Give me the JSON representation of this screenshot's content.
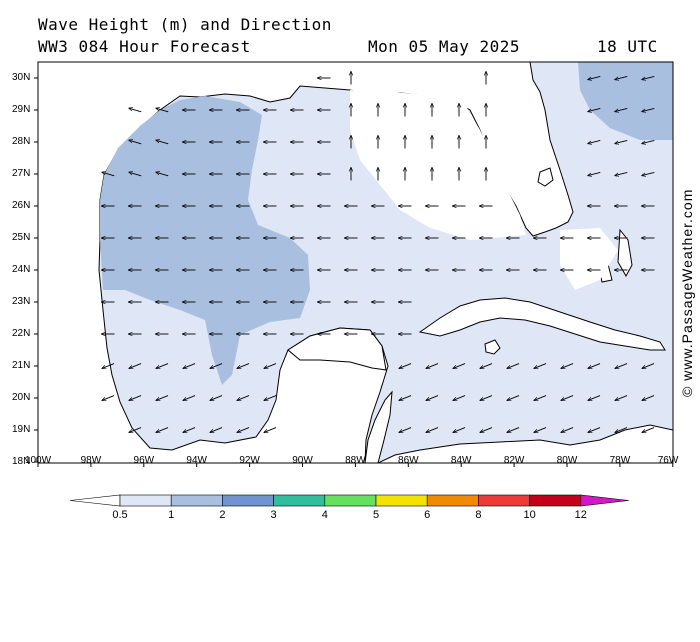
{
  "header": {
    "title_line1": "Wave Height (m) and Direction",
    "model_line": "WW3 084 Hour Forecast",
    "date": "Mon 05 May 2025",
    "time": "18 UTC"
  },
  "credit": "© www.PassageWeather.com",
  "map": {
    "region": "Gulf of Mexico",
    "lat_ticks": [
      "30N",
      "29N",
      "28N",
      "27N",
      "26N",
      "25N",
      "24N",
      "23N",
      "22N",
      "21N",
      "20N",
      "19N",
      "18N"
    ],
    "lon_ticks": [
      "100W",
      "98W",
      "96W",
      "94W",
      "92W",
      "90W",
      "88W",
      "86W",
      "84W",
      "82W",
      "80W",
      "78W",
      "76W"
    ],
    "colors": {
      "land": "#ffffff",
      "wave_0_5_1": "#dfe6f5",
      "wave_1_2": "#a9bfe0",
      "coast": "#000000",
      "arrow": "#000000"
    }
  },
  "colorbar": {
    "labels": [
      "0.5",
      "1",
      "2",
      "3",
      "4",
      "5",
      "6",
      "8",
      "10",
      "12"
    ],
    "colors": [
      "#dfe6f5",
      "#a9bfe0",
      "#6f94d0",
      "#2fbf9c",
      "#63e15f",
      "#f2e400",
      "#f28a00",
      "#ef3a3a",
      "#c4001a",
      "#d418c8"
    ]
  }
}
